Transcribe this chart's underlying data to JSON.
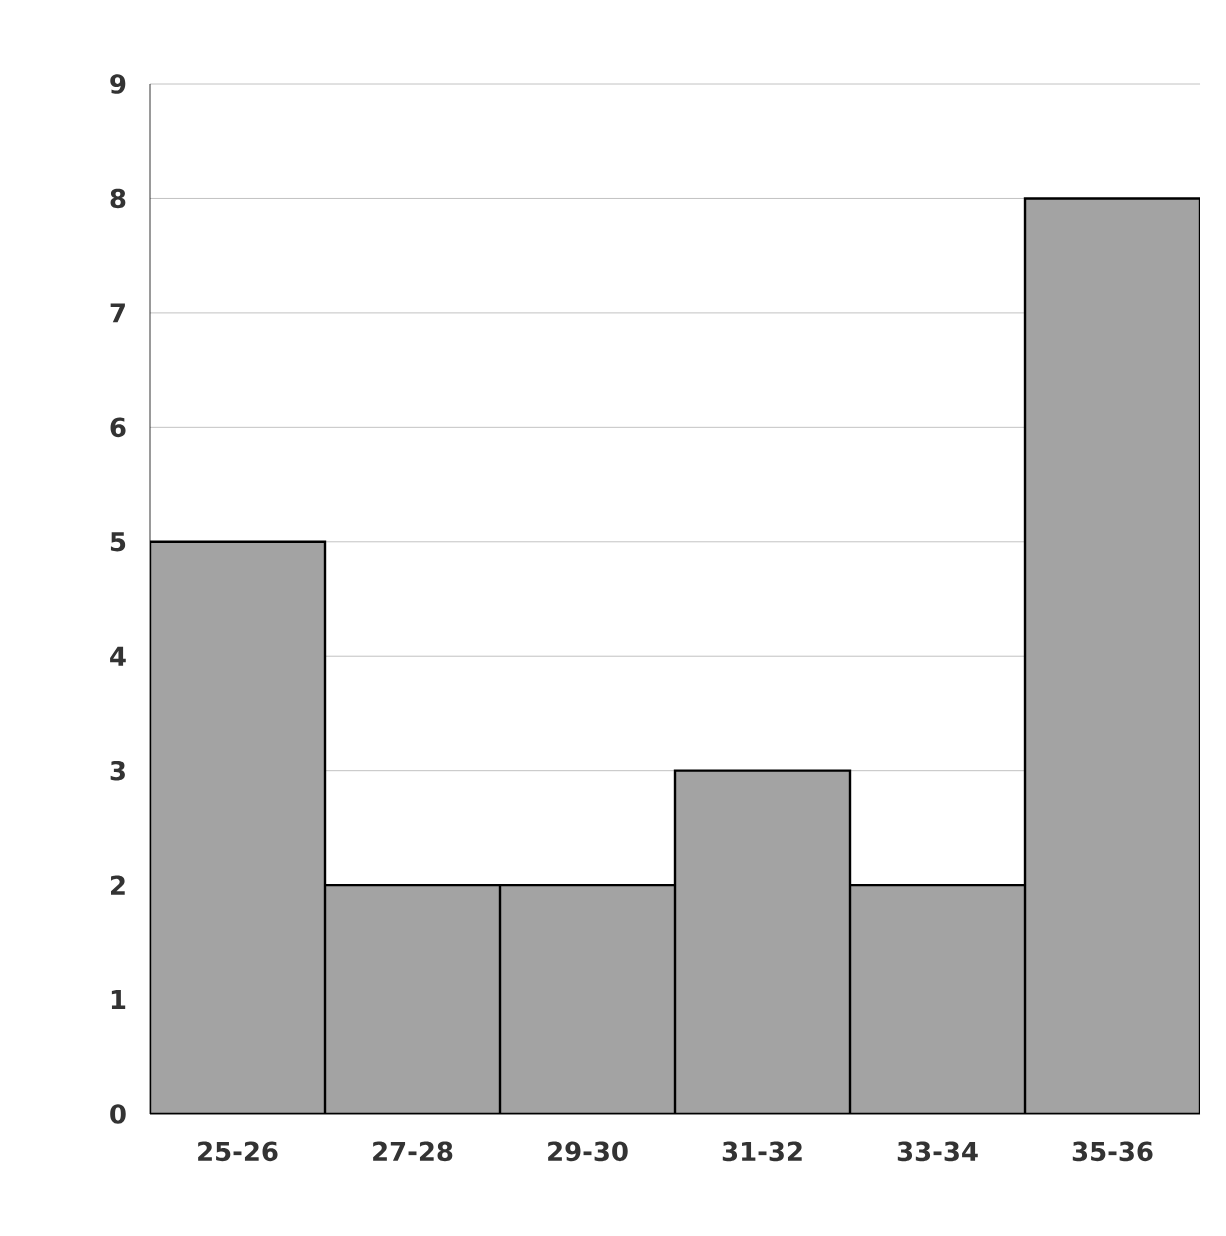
{
  "chart_data": {
    "type": "bar",
    "categories": [
      "25-26",
      "27-28",
      "29-30",
      "31-32",
      "33-34",
      "35-36"
    ],
    "values": [
      5,
      2,
      2,
      3,
      2,
      8
    ],
    "color": "#a3a3a3",
    "ylim": [
      0,
      9
    ],
    "yticks": [
      0,
      1,
      2,
      3,
      4,
      5,
      6,
      7,
      8,
      9
    ],
    "grid": "y"
  }
}
